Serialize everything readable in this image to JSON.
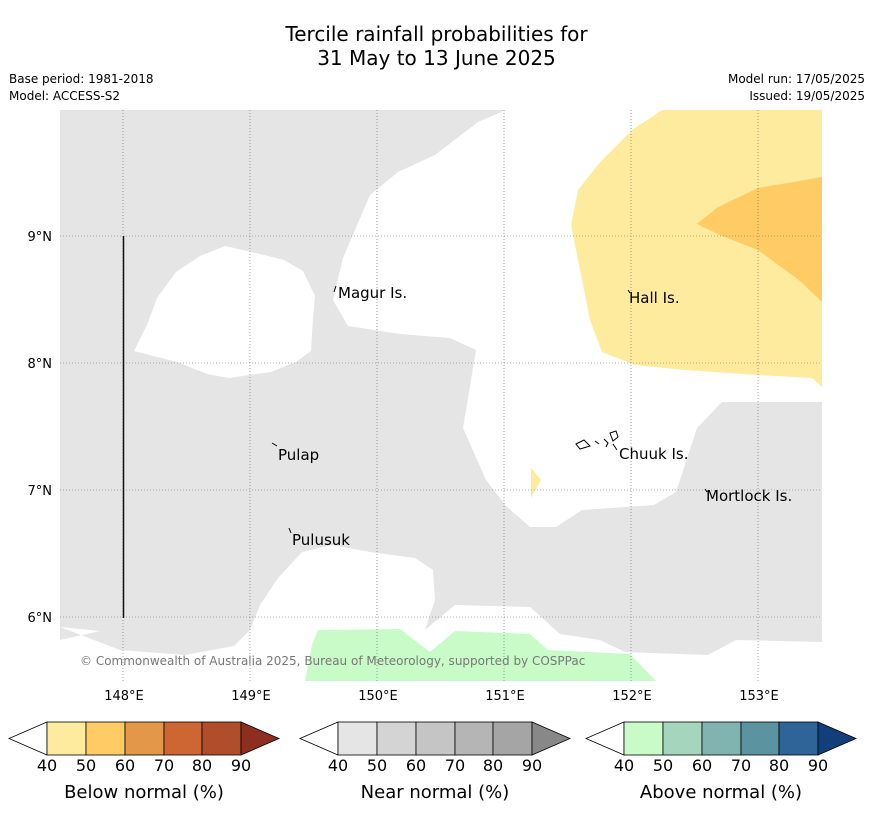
{
  "title_line1": "Tercile rainfall probabilities for",
  "title_line2": "31 May to 13 June 2025",
  "meta_left": {
    "base_period": "Base period: 1981-2018",
    "model": "Model: ACCESS-S2"
  },
  "meta_right": {
    "model_run": "Model run: 17/05/2025",
    "issued": "Issued: 19/05/2025"
  },
  "map": {
    "lat_labels": [
      "9°N",
      "8°N",
      "7°N",
      "6°N"
    ],
    "lon_labels": [
      "148°E",
      "149°E",
      "150°E",
      "151°E",
      "152°E",
      "153°E"
    ],
    "places": [
      "Magur Is.",
      "Hall Is.",
      "Pulap",
      "Chuuk Is.",
      "Mortlock Is.",
      "Pulusuk"
    ],
    "copyright": "© Commonwealth of Australia 2025, Bureau of Meteorology, supported by COSPPac",
    "colors": {
      "near_normal": "#e5e5e5",
      "below_50": "#ffeb9e",
      "below_60": "#ffcb65",
      "above_50": "#c8fbc8"
    }
  },
  "colorbars": [
    {
      "name": "Below normal (%)",
      "ticks": [
        "40",
        "50",
        "60",
        "70",
        "80",
        "90"
      ],
      "colors": [
        "#ffeb9e",
        "#ffcb65",
        "#e39748",
        "#ce6634",
        "#b04d2b",
        "#8e2e20"
      ]
    },
    {
      "name": "Near normal (%)",
      "ticks": [
        "40",
        "50",
        "60",
        "70",
        "80",
        "90"
      ],
      "colors": [
        "#e5e5e5",
        "#d4d4d4",
        "#c5c5c5",
        "#b5b5b5",
        "#a5a5a5",
        "#888888"
      ]
    },
    {
      "name": "Above normal (%)",
      "ticks": [
        "40",
        "50",
        "60",
        "70",
        "80",
        "90"
      ],
      "colors": [
        "#c8fbc8",
        "#a5d6bd",
        "#7fb4b0",
        "#5b93a0",
        "#2f6499",
        "#123f79"
      ]
    }
  ]
}
